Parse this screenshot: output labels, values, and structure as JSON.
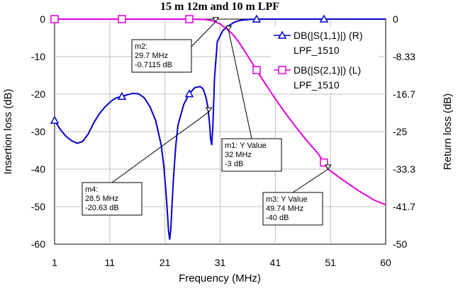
{
  "chart_data": {
    "type": "line",
    "title": "15 m 12m and 10 m LPF",
    "xlabel": "Frequency (MHz)",
    "ylabel_left": "Insertion loss (dB)",
    "ylabel_right": "Return loss (dB)",
    "xlim": [
      1,
      60
    ],
    "ylim_left": [
      -60,
      0
    ],
    "ylim_right": [
      -50,
      0
    ],
    "x_ticks": [
      "1",
      "11",
      "21",
      "31",
      "41",
      "51",
      "60"
    ],
    "y_ticks_left": [
      "0",
      "-10",
      "-20",
      "-30",
      "-40",
      "-50",
      "-60"
    ],
    "y_ticks_right": [
      "0",
      "-8.33",
      "-16.7",
      "-25",
      "-33.3",
      "-41.7",
      "-50"
    ],
    "grid": true,
    "legend_position": "top-right",
    "series": [
      {
        "name": "DB(|S(1,1)|) (R)",
        "name_line2": "LPF_1510",
        "color": "#0000CC",
        "marker": "triangle",
        "axis": "right",
        "x": [
          1,
          2,
          3,
          4,
          5,
          6,
          7,
          8,
          9,
          10,
          11,
          12,
          13,
          14,
          15,
          16,
          17,
          18,
          19,
          20,
          20.5,
          21,
          21.3,
          21.5,
          21.7,
          21.9,
          22.2,
          22.6,
          23,
          24,
          25,
          26,
          27,
          27.5,
          28,
          28.3,
          28.6,
          28.8,
          29,
          29.2,
          29.5,
          30,
          31,
          32,
          33,
          34,
          35,
          36,
          38,
          40,
          45,
          50,
          55,
          60
        ],
        "values": [
          -22.5,
          -24.5,
          -26,
          -27,
          -27.6,
          -27.2,
          -25.5,
          -23,
          -21,
          -19.5,
          -18.3,
          -17.5,
          -17.2,
          -16.8,
          -16.5,
          -16.6,
          -17.5,
          -19.5,
          -22.5,
          -28,
          -33,
          -41,
          -47,
          -49,
          -47,
          -42,
          -35,
          -28,
          -23.5,
          -19,
          -16.6,
          -15.2,
          -15,
          -15.6,
          -17.5,
          -19.5,
          -23,
          -26.5,
          -28,
          -24,
          -13,
          -5,
          -2.5,
          -1.5,
          -0.7,
          -0.3,
          -0.15,
          -0.05,
          0,
          0,
          0,
          0,
          0,
          0
        ]
      },
      {
        "name": "DB(|S(2,1)|) (L)",
        "name_line2": "LPF_1510",
        "color": "#E000E0",
        "marker": "square",
        "axis": "left",
        "x": [
          1,
          5,
          10,
          15,
          20,
          25,
          27,
          28,
          29,
          29.7,
          30.5,
          31,
          32,
          33,
          34,
          35,
          36,
          37,
          38,
          40,
          42,
          44,
          46,
          48,
          49.74,
          52,
          55,
          58,
          60
        ],
        "values": [
          0,
          0,
          0,
          0,
          0,
          0,
          -0.05,
          -0.15,
          -0.4,
          -0.7115,
          -1.3,
          -1.9,
          -3,
          -4.5,
          -6.5,
          -8.8,
          -11.2,
          -13.6,
          -16,
          -20.5,
          -24.8,
          -28.8,
          -32.5,
          -35.9,
          -40,
          -42.5,
          -45.6,
          -48.3,
          -49.5
        ]
      }
    ],
    "annotations": [
      {
        "label": "m1: Y Value",
        "line2": "32 MHz",
        "line3": "-3 dB",
        "x": 32,
        "y": -3,
        "axis": "left"
      },
      {
        "label": "m2:",
        "line2": "29.7 MHz",
        "line3": "-0.7115 dB",
        "x": 29.7,
        "y": -0.7115,
        "axis": "left"
      },
      {
        "label": "m3: Y Value",
        "line2": "49.74 MHz",
        "line3": "-40 dB",
        "x": 49.74,
        "y": -40,
        "axis": "left"
      },
      {
        "label": "m4:",
        "line2": "28.5 MHz",
        "line3": "-20.63 dB",
        "x": 28.5,
        "y": -20.63,
        "axis": "right"
      }
    ]
  }
}
